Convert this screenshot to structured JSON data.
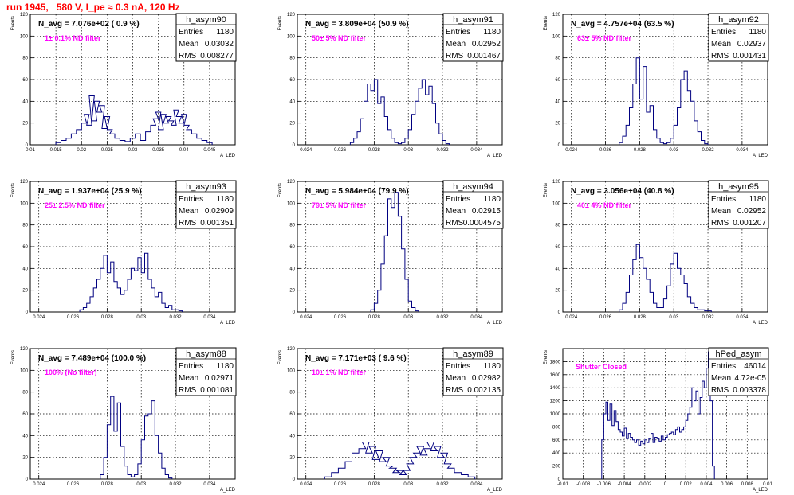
{
  "run_title": "run 1945,   580 V, I_pe ≈ 0.3 nA, 120 Hz",
  "y_axis_label": "Events",
  "x_axis_label": "A_LED",
  "colors": {
    "histogram": "#000080",
    "filter_text": "#ff00ff",
    "run_title": "#ff0000"
  },
  "stat_labels": {
    "entries": "Entries",
    "mean": "Mean",
    "rms": "RMS"
  },
  "chart_data": [
    {
      "type": "histogram",
      "name": "h_asym90",
      "navg": "N_avg = 7.076e+02 ( 0.9 %)",
      "filter": "1± 0.1% ND filter",
      "stats": {
        "entries": "1180",
        "mean": "0.03032",
        "rms": "0.008277"
      },
      "xlim": [
        0.01,
        0.05
      ],
      "ylim": [
        0,
        120
      ],
      "xticks": [
        "0.01",
        "0.015",
        "0.02",
        "0.025",
        "0.03",
        "0.035",
        "0.04",
        "0.045"
      ],
      "xtick_values": [
        0.01,
        0.015,
        0.02,
        0.025,
        0.03,
        0.035,
        0.04,
        0.045
      ],
      "yticks": [
        "0",
        "20",
        "40",
        "60",
        "80",
        "100",
        "120"
      ],
      "ytick_values": [
        0,
        20,
        40,
        60,
        80,
        100,
        120
      ],
      "x": [
        0.0155,
        0.0165,
        0.0175,
        0.0185,
        0.0195,
        0.0205,
        0.021,
        0.0215,
        0.022,
        0.0225,
        0.023,
        0.0235,
        0.024,
        0.0245,
        0.025,
        0.0255,
        0.026,
        0.027,
        0.028,
        0.029,
        0.03,
        0.031,
        0.032,
        0.033,
        0.034,
        0.0345,
        0.035,
        0.0355,
        0.036,
        0.0365,
        0.037,
        0.0375,
        0.038,
        0.0385,
        0.039,
        0.0395,
        0.04,
        0.0405,
        0.041,
        0.042,
        0.043,
        0.044,
        0.045
      ],
      "y": [
        2,
        4,
        6,
        10,
        14,
        20,
        28,
        18,
        45,
        22,
        40,
        30,
        36,
        15,
        26,
        14,
        10,
        6,
        4,
        3,
        6,
        10,
        4,
        12,
        18,
        24,
        30,
        14,
        28,
        20,
        26,
        22,
        18,
        32,
        26,
        20,
        28,
        18,
        14,
        10,
        6,
        4,
        2
      ]
    },
    {
      "type": "histogram",
      "name": "h_asym91",
      "navg": "N_avg = 3.809e+04 (50.9 %)",
      "filter": "50± 5% ND filter",
      "stats": {
        "entries": "1180",
        "mean": "0.02952",
        "rms": "0.001467"
      },
      "xlim": [
        0.0235,
        0.0355
      ],
      "ylim": [
        0,
        120
      ],
      "xticks": [
        "0.024",
        "0.026",
        "0.028",
        "0.03",
        "0.032",
        "0.034"
      ],
      "xtick_values": [
        0.024,
        0.026,
        0.028,
        0.03,
        0.032,
        0.034
      ],
      "yticks": [
        "0",
        "20",
        "40",
        "60",
        "80",
        "100",
        "120"
      ],
      "ytick_values": [
        0,
        20,
        40,
        60,
        80,
        100,
        120
      ],
      "x": [
        0.0267,
        0.0269,
        0.0271,
        0.0273,
        0.0275,
        0.0277,
        0.0279,
        0.0281,
        0.0283,
        0.0285,
        0.0287,
        0.0289,
        0.0291,
        0.0293,
        0.0295,
        0.0297,
        0.0299,
        0.0301,
        0.0303,
        0.0305,
        0.0307,
        0.0309,
        0.0311,
        0.0313,
        0.0315,
        0.0317,
        0.0319,
        0.0321,
        0.0323
      ],
      "y": [
        2,
        6,
        12,
        24,
        40,
        56,
        50,
        60,
        38,
        44,
        26,
        14,
        6,
        2,
        1,
        2,
        6,
        14,
        28,
        40,
        52,
        60,
        46,
        54,
        38,
        20,
        10,
        4,
        1
      ]
    },
    {
      "type": "histogram",
      "name": "h_asym92",
      "navg": "N_avg = 4.757e+04 (63.5 %)",
      "filter": "63± 5% ND filter",
      "stats": {
        "entries": "1180",
        "mean": "0.02937",
        "rms": "0.001431"
      },
      "xlim": [
        0.0235,
        0.0355
      ],
      "ylim": [
        0,
        120
      ],
      "xticks": [
        "0.024",
        "0.026",
        "0.028",
        "0.03",
        "0.032",
        "0.034"
      ],
      "xtick_values": [
        0.024,
        0.026,
        0.028,
        0.03,
        0.032,
        0.034
      ],
      "yticks": [
        "0",
        "20",
        "40",
        "60",
        "80",
        "100",
        "120"
      ],
      "ytick_values": [
        0,
        20,
        40,
        60,
        80,
        100,
        120
      ],
      "x": [
        0.0269,
        0.0271,
        0.0273,
        0.0275,
        0.0277,
        0.0279,
        0.0281,
        0.0283,
        0.0285,
        0.0287,
        0.0289,
        0.0291,
        0.0293,
        0.0295,
        0.0297,
        0.0299,
        0.0301,
        0.0303,
        0.0305,
        0.0307,
        0.0309,
        0.0311,
        0.0313,
        0.0315,
        0.0317,
        0.0319
      ],
      "y": [
        2,
        8,
        18,
        34,
        56,
        80,
        42,
        72,
        30,
        36,
        14,
        6,
        2,
        1,
        2,
        6,
        18,
        34,
        60,
        68,
        50,
        40,
        22,
        12,
        4,
        1
      ]
    },
    {
      "type": "histogram",
      "name": "h_asym93",
      "navg": "N_avg = 1.937e+04 (25.9 %)",
      "filter": "25± 2.5% ND filter",
      "stats": {
        "entries": "1180",
        "mean": "0.02909",
        "rms": "0.001351"
      },
      "xlim": [
        0.0235,
        0.0355
      ],
      "ylim": [
        0,
        120
      ],
      "xticks": [
        "0.024",
        "0.026",
        "0.028",
        "0.03",
        "0.032",
        "0.034"
      ],
      "xtick_values": [
        0.024,
        0.026,
        0.028,
        0.03,
        0.032,
        0.034
      ],
      "yticks": [
        "0",
        "20",
        "40",
        "60",
        "80",
        "100",
        "120"
      ],
      "ytick_values": [
        0,
        20,
        40,
        60,
        80,
        100,
        120
      ],
      "x": [
        0.0265,
        0.0267,
        0.0269,
        0.0271,
        0.0273,
        0.0275,
        0.0277,
        0.0279,
        0.0281,
        0.0283,
        0.0285,
        0.0287,
        0.0289,
        0.0291,
        0.0293,
        0.0295,
        0.0297,
        0.0299,
        0.0301,
        0.0303,
        0.0305,
        0.0307,
        0.0309,
        0.0311,
        0.0313,
        0.0315,
        0.0317,
        0.0319,
        0.0321,
        0.0323
      ],
      "y": [
        2,
        4,
        8,
        14,
        22,
        30,
        40,
        52,
        36,
        46,
        28,
        22,
        16,
        20,
        30,
        40,
        38,
        50,
        36,
        54,
        30,
        22,
        14,
        18,
        8,
        4,
        6,
        2,
        2,
        1
      ]
    },
    {
      "type": "histogram",
      "name": "h_asym94",
      "navg": "N_avg = 5.984e+04 (79.9 %)",
      "filter": "79± 5% ND filter",
      "stats": {
        "entries": "1180",
        "mean": "0.02915",
        "rms": "0.0004575"
      },
      "xlim": [
        0.0235,
        0.0355
      ],
      "ylim": [
        0,
        120
      ],
      "xticks": [
        "0.024",
        "0.026",
        "0.028",
        "0.03",
        "0.032",
        "0.034"
      ],
      "xtick_values": [
        0.024,
        0.026,
        0.028,
        0.03,
        0.032,
        0.034
      ],
      "yticks": [
        "0",
        "20",
        "40",
        "60",
        "80",
        "100",
        "120"
      ],
      "ytick_values": [
        0,
        20,
        40,
        60,
        80,
        100,
        120
      ],
      "x": [
        0.0279,
        0.0281,
        0.0283,
        0.0285,
        0.0287,
        0.0289,
        0.0291,
        0.0293,
        0.0295,
        0.0297,
        0.0299,
        0.0301,
        0.0303,
        0.0305
      ],
      "y": [
        2,
        8,
        20,
        44,
        70,
        104,
        96,
        110,
        88,
        58,
        30,
        10,
        4,
        1
      ]
    },
    {
      "type": "histogram",
      "name": "h_asym95",
      "navg": "N_avg = 3.056e+04 (40.8 %)",
      "filter": "40± 4% ND filter",
      "stats": {
        "entries": "1180",
        "mean": "0.02952",
        "rms": "0.001207"
      },
      "xlim": [
        0.0235,
        0.0355
      ],
      "ylim": [
        0,
        120
      ],
      "xticks": [
        "0.024",
        "0.026",
        "0.028",
        "0.03",
        "0.032",
        "0.034"
      ],
      "xtick_values": [
        0.024,
        0.026,
        0.028,
        0.03,
        0.032,
        0.034
      ],
      "yticks": [
        "0",
        "20",
        "40",
        "60",
        "80",
        "100",
        "120"
      ],
      "ytick_values": [
        0,
        20,
        40,
        60,
        80,
        100,
        120
      ],
      "x": [
        0.0269,
        0.0271,
        0.0273,
        0.0275,
        0.0277,
        0.0279,
        0.0281,
        0.0283,
        0.0285,
        0.0287,
        0.0289,
        0.0291,
        0.0293,
        0.0295,
        0.0297,
        0.0299,
        0.0301,
        0.0303,
        0.0305,
        0.0307,
        0.0309,
        0.0311,
        0.0313,
        0.0315,
        0.0317,
        0.0319,
        0.0321
      ],
      "y": [
        2,
        8,
        18,
        34,
        48,
        62,
        50,
        40,
        30,
        18,
        8,
        4,
        4,
        12,
        24,
        44,
        54,
        40,
        34,
        26,
        14,
        8,
        4,
        2,
        2,
        1,
        1
      ]
    },
    {
      "type": "histogram",
      "name": "h_asym88",
      "navg": "N_avg = 7.489e+04 (100.0 %)",
      "filter": "100% (No filter)",
      "stats": {
        "entries": "1180",
        "mean": "0.02971",
        "rms": "0.001081"
      },
      "xlim": [
        0.0235,
        0.0355
      ],
      "ylim": [
        0,
        120
      ],
      "xticks": [
        "0.024",
        "0.026",
        "0.028",
        "0.03",
        "0.032",
        "0.034"
      ],
      "xtick_values": [
        0.024,
        0.026,
        0.028,
        0.03,
        0.032,
        0.034
      ],
      "yticks": [
        "0",
        "20",
        "40",
        "60",
        "80",
        "100",
        "120"
      ],
      "ytick_values": [
        0,
        20,
        40,
        60,
        80,
        100,
        120
      ],
      "x": [
        0.0277,
        0.0279,
        0.0281,
        0.0283,
        0.0285,
        0.0287,
        0.0289,
        0.0291,
        0.0293,
        0.0295,
        0.0297,
        0.0299,
        0.0301,
        0.0303,
        0.0305,
        0.0307,
        0.0309,
        0.0311,
        0.0313,
        0.0315,
        0.0317
      ],
      "y": [
        4,
        20,
        50,
        76,
        44,
        70,
        30,
        12,
        4,
        2,
        4,
        14,
        36,
        58,
        60,
        72,
        40,
        24,
        10,
        4,
        1
      ]
    },
    {
      "type": "histogram",
      "name": "h_asym89",
      "navg": "N_avg = 7.171e+03 ( 9.6 %)",
      "filter": "10± 1% ND filter",
      "stats": {
        "entries": "1180",
        "mean": "0.02982",
        "rms": "0.002135"
      },
      "xlim": [
        0.0235,
        0.0355
      ],
      "ylim": [
        0,
        120
      ],
      "xticks": [
        "0.024",
        "0.026",
        "0.028",
        "0.03",
        "0.032",
        "0.034"
      ],
      "xtick_values": [
        0.024,
        0.026,
        0.028,
        0.03,
        0.032,
        0.034
      ],
      "yticks": [
        "0",
        "20",
        "40",
        "60",
        "80",
        "100",
        "120"
      ],
      "ytick_values": [
        0,
        20,
        40,
        60,
        80,
        100,
        120
      ],
      "x": [
        0.0253,
        0.0257,
        0.0261,
        0.0265,
        0.0269,
        0.0273,
        0.0275,
        0.0277,
        0.0279,
        0.0281,
        0.0283,
        0.0285,
        0.0287,
        0.0289,
        0.0291,
        0.0293,
        0.0295,
        0.0297,
        0.0299,
        0.0301,
        0.0303,
        0.0305,
        0.0307,
        0.0309,
        0.0311,
        0.0313,
        0.0315,
        0.0317,
        0.0319,
        0.0321,
        0.0323,
        0.0325,
        0.0329,
        0.0333,
        0.0337
      ],
      "y": [
        2,
        6,
        10,
        16,
        24,
        28,
        34,
        24,
        30,
        18,
        26,
        16,
        20,
        12,
        10,
        6,
        8,
        4,
        8,
        14,
        20,
        24,
        30,
        22,
        28,
        34,
        26,
        30,
        20,
        24,
        14,
        10,
        6,
        4,
        2
      ]
    },
    {
      "type": "histogram",
      "name": "hPed_asym",
      "navg": "",
      "filter": "Shutter Closed",
      "stats": {
        "entries": "46014",
        "mean": "4.72e-05",
        "rms": "0.003378"
      },
      "xlim": [
        -0.01,
        0.01
      ],
      "ylim": [
        0,
        2000
      ],
      "xticks": [
        "-0.01",
        "-0.008",
        "-0.006",
        "-0.004",
        "-0.002",
        "0",
        "0.002",
        "0.004",
        "0.006",
        "0.008",
        "0.01"
      ],
      "xtick_values": [
        -0.01,
        -0.008,
        -0.006,
        -0.004,
        -0.002,
        0,
        0.002,
        0.004,
        0.006,
        0.008,
        0.01
      ],
      "yticks": [
        "0",
        "200",
        "400",
        "600",
        "800",
        "1000",
        "1200",
        "1400",
        "1600",
        "1800"
      ],
      "ytick_values": [
        0,
        200,
        400,
        600,
        800,
        1000,
        1200,
        1400,
        1600,
        1800
      ],
      "x": [
        -0.0061,
        -0.0059,
        -0.0057,
        -0.0055,
        -0.0053,
        -0.0051,
        -0.0049,
        -0.0047,
        -0.0045,
        -0.0043,
        -0.0041,
        -0.0039,
        -0.0037,
        -0.0035,
        -0.0033,
        -0.0031,
        -0.0029,
        -0.0027,
        -0.0025,
        -0.0023,
        -0.0021,
        -0.0019,
        -0.0017,
        -0.0015,
        -0.0013,
        -0.0011,
        -0.0009,
        -0.0007,
        -0.0005,
        -0.0003,
        -0.0001,
        0.0001,
        0.0003,
        0.0005,
        0.0007,
        0.0009,
        0.0011,
        0.0013,
        0.0015,
        0.0017,
        0.0019,
        0.0021,
        0.0023,
        0.0025,
        0.0027,
        0.0029,
        0.0031,
        0.0033,
        0.0035,
        0.0037,
        0.0039,
        0.0041,
        0.0043,
        0.0045,
        0.0047
      ],
      "y": [
        600,
        1000,
        1180,
        900,
        1150,
        820,
        1050,
        880,
        760,
        720,
        660,
        780,
        620,
        700,
        640,
        600,
        560,
        600,
        520,
        580,
        540,
        600,
        560,
        620,
        700,
        560,
        640,
        620,
        580,
        660,
        600,
        640,
        680,
        700,
        720,
        680,
        760,
        800,
        720,
        760,
        800,
        900,
        1000,
        1100,
        1400,
        1200,
        1350,
        1000,
        1250,
        1500,
        1400,
        1700,
        1950,
        1200,
        200
      ]
    }
  ]
}
